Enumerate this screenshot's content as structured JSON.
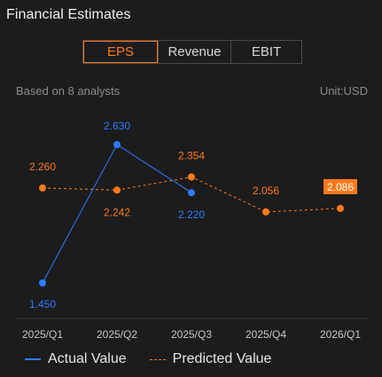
{
  "title": "Financial Estimates",
  "tabs": [
    {
      "label": "EPS",
      "active": true
    },
    {
      "label": "Revenue",
      "active": false
    },
    {
      "label": "EBIT",
      "active": false
    }
  ],
  "analysts_text": "Based on 8 analysts",
  "unit_text": "Unit:USD",
  "legend": {
    "actual": "Actual Value",
    "predicted": "Predicted Value"
  },
  "colors": {
    "actual": "#2f7bff",
    "predicted": "#ff7a1a",
    "background": "#1c1c1c"
  },
  "chart_data": {
    "type": "line",
    "categories": [
      "2025/Q1",
      "2025/Q2",
      "2025/Q3",
      "2025/Q4",
      "2026/Q1"
    ],
    "series": [
      {
        "name": "Actual Value",
        "values": [
          1.45,
          2.63,
          2.22,
          null,
          null
        ],
        "labels": [
          "1.450",
          "2.630",
          "2.220",
          "",
          ""
        ]
      },
      {
        "name": "Predicted Value",
        "values": [
          2.26,
          2.242,
          2.354,
          2.056,
          2.086
        ],
        "labels": [
          "2.260",
          "2.242",
          "2.354",
          "2.056",
          "2.086"
        ]
      }
    ],
    "ylim": [
      1.45,
      2.63
    ],
    "grid": false,
    "legend_position": "bottom-left"
  }
}
